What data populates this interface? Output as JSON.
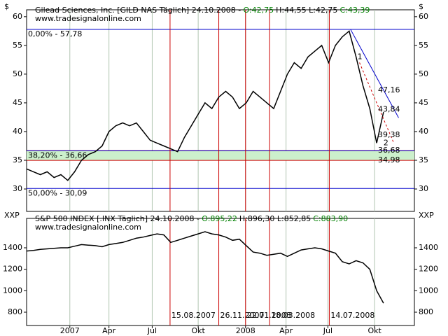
{
  "chart_data": [
    {
      "type": "line",
      "header": [
        {
          "text": "Gilead Sciences, Inc. [GILD NAS  Täglich] 24.10.2008 -",
          "color": "#000000"
        },
        {
          "text": "O:42,75",
          "color": "#008000"
        },
        {
          "text": "H:44,55 L:42,75",
          "color": "#000000"
        },
        {
          "text": "C:43,39",
          "color": "#008000"
        }
      ],
      "source": "www.tradesignalonline.com",
      "ylabel": "$",
      "series": [
        {
          "name": "GILD",
          "color": "#000000",
          "values": [
            33.5,
            33,
            32.5,
            33,
            32,
            32.5,
            31.5,
            33,
            35,
            36,
            36.5,
            37.5,
            40,
            41,
            41.5,
            41,
            41.5,
            40,
            38.5,
            38,
            37.5,
            37,
            36.5,
            39,
            41,
            43,
            45,
            44,
            46,
            47,
            46,
            44,
            45,
            47,
            46,
            45,
            44,
            47,
            50,
            52,
            51,
            53,
            54,
            55,
            52,
            55,
            56.5,
            57.5,
            53,
            48,
            44,
            38,
            43.39
          ]
        }
      ],
      "xlim": [
        0,
        56.5
      ],
      "ylim": [
        26.1,
        61.2
      ],
      "yticks": [
        30,
        35,
        40,
        45,
        50,
        55,
        60
      ],
      "levels": [
        {
          "value": 57.78,
          "label": "0,00% - 57,78",
          "color": "#0000cc"
        },
        {
          "value": 36.66,
          "label": "38,20% - 36,66",
          "color": "#0000cc"
        },
        {
          "value": 30.09,
          "label": "50,00% - 30,09",
          "color": "#0000cc"
        }
      ],
      "band": [
        34.98,
        36.68
      ],
      "band_color": "#ccf0cc",
      "annotations": [
        {
          "x": 51.2,
          "value": 47.16,
          "label": "47,16",
          "color": "#0000cc"
        },
        {
          "x": 51.2,
          "value": 43.84,
          "label": "43,84",
          "color": "#cc0000"
        },
        {
          "x": 51.2,
          "value": 39.38,
          "label": "39,38",
          "color": "#9933cc"
        },
        {
          "x": 51.2,
          "value": 36.68,
          "label": "36,68",
          "color": "#cc0000"
        },
        {
          "x": 51.2,
          "value": 34.98,
          "label": "34,98",
          "color": "#cc0000"
        },
        {
          "x": 48.2,
          "value": 53,
          "label": "1",
          "color": "#cc0000"
        },
        {
          "x": 52,
          "value": 38,
          "label": "2",
          "color": "#9933cc"
        }
      ],
      "trendlines": [
        {
          "x": [
            47.2,
            54.2
          ],
          "y": [
            57.78,
            42.4
          ],
          "color": "#0000cc",
          "dashed": false
        },
        {
          "x": [
            48.5,
            53.5
          ],
          "y": [
            52,
            38
          ],
          "color": "#cc0000",
          "dashed": true
        }
      ]
    },
    {
      "type": "line",
      "header": [
        {
          "text": "S&P 500 INDEX [.INX  Täglich] 24.10.2008 -",
          "color": "#000000"
        },
        {
          "text": "O:895,22",
          "color": "#008000"
        },
        {
          "text": "H:896,30 L:852,85",
          "color": "#000000"
        },
        {
          "text": "C:883,90",
          "color": "#008000"
        }
      ],
      "source": "www.tradesignalonline.com",
      "ylabel": "XXP",
      "series": [
        {
          "name": "S&P 500",
          "color": "#000000",
          "values": [
            1370,
            1375,
            1385,
            1390,
            1395,
            1400,
            1400,
            1415,
            1430,
            1425,
            1420,
            1410,
            1430,
            1440,
            1450,
            1470,
            1490,
            1500,
            1515,
            1530,
            1520,
            1450,
            1470,
            1490,
            1510,
            1530,
            1550,
            1530,
            1520,
            1500,
            1470,
            1480,
            1420,
            1360,
            1350,
            1330,
            1340,
            1350,
            1320,
            1350,
            1380,
            1390,
            1400,
            1390,
            1370,
            1350,
            1270,
            1250,
            1280,
            1260,
            1200,
            1000,
            883.9
          ]
        }
      ],
      "xlim": [
        0,
        56.5
      ],
      "ylim": [
        676,
        1674
      ],
      "yticks": [
        800,
        1000,
        1200,
        1400
      ]
    }
  ],
  "xticks": [
    {
      "value": 6.3,
      "label": "2007"
    },
    {
      "value": 12,
      "label": "Apr"
    },
    {
      "value": 18.3,
      "label": "Jul"
    },
    {
      "value": 25,
      "label": "Okt"
    },
    {
      "value": 31.9,
      "label": "2008"
    },
    {
      "value": 37.8,
      "label": "Apr"
    },
    {
      "value": 43.9,
      "label": "Jul"
    },
    {
      "value": 50.7,
      "label": "Okt"
    }
  ],
  "events": [
    {
      "x": 20.9,
      "label": "15.08.2007"
    },
    {
      "x": 28,
      "label": "26.11.2007"
    },
    {
      "x": 31.9,
      "label": "22.01.2008"
    },
    {
      "x": 35.4,
      "label": "18.03.2008"
    },
    {
      "x": 44.1,
      "label": "14.07.2008"
    }
  ]
}
